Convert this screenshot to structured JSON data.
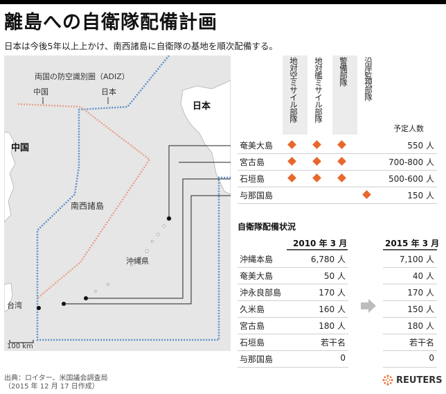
{
  "title": "離島への自衛隊配備計画",
  "subtitle": "日本は今後5年以上上かけ、南西諸島に自衛隊の基地を順次配備する。",
  "map": {
    "adiz_label": "両国の防空識別圏（ADIZ）",
    "adiz_china": "中国",
    "adiz_japan": "日本",
    "label_japan": "日本",
    "label_china": "中国",
    "label_nansei": "南西諸島",
    "label_okinawa": "沖縄県",
    "label_taiwan": "台湾",
    "scale": "100 km",
    "colors": {
      "land": "#ffffff",
      "sea": "#e6e6e6",
      "japan_adiz": "#5b8ec9",
      "china_adiz": "#e8a08a"
    }
  },
  "plan_table": {
    "columns": [
      "地対空ミサイル部隊",
      "地対艦ミサイル部隊",
      "警備部隊",
      "沿岸監視部隊"
    ],
    "personnel_header": "予定人数",
    "rows": [
      {
        "name": "奄美大島",
        "marks": [
          true,
          true,
          true,
          false
        ],
        "personnel": "550 人"
      },
      {
        "name": "宮古島",
        "marks": [
          true,
          true,
          true,
          false
        ],
        "personnel": "700-800 人"
      },
      {
        "name": "石垣島",
        "marks": [
          true,
          true,
          true,
          false
        ],
        "personnel": "500-600 人"
      },
      {
        "name": "与那国島",
        "marks": [
          false,
          false,
          false,
          true
        ],
        "personnel": "150 人"
      }
    ],
    "marker_color": "#e8672c"
  },
  "deploy_table": {
    "title": "自衛隊配備状況",
    "year1": "2010 年 3 月",
    "year2": "2015 年 3 月",
    "rows": [
      {
        "name": "沖縄本島",
        "v2010": "6,780 人",
        "v2015": "7,100 人"
      },
      {
        "name": "奄美大島",
        "v2010": "50 人",
        "v2015": "40 人"
      },
      {
        "name": "沖永良部島",
        "v2010": "170 人",
        "v2015": "170 人"
      },
      {
        "name": "久米島",
        "v2010": "160 人",
        "v2015": "150 人"
      },
      {
        "name": "宮古島",
        "v2010": "180 人",
        "v2015": "180 人"
      },
      {
        "name": "石垣島",
        "v2010": "若干名",
        "v2015": "若干名"
      },
      {
        "name": "与那国島",
        "v2010": "0",
        "v2015": "0"
      }
    ]
  },
  "source_line1": "出典：ロイター、米国議会調査局",
  "source_line2": "（2015 年 12 月 17 日作成）",
  "brand": "REUTERS"
}
